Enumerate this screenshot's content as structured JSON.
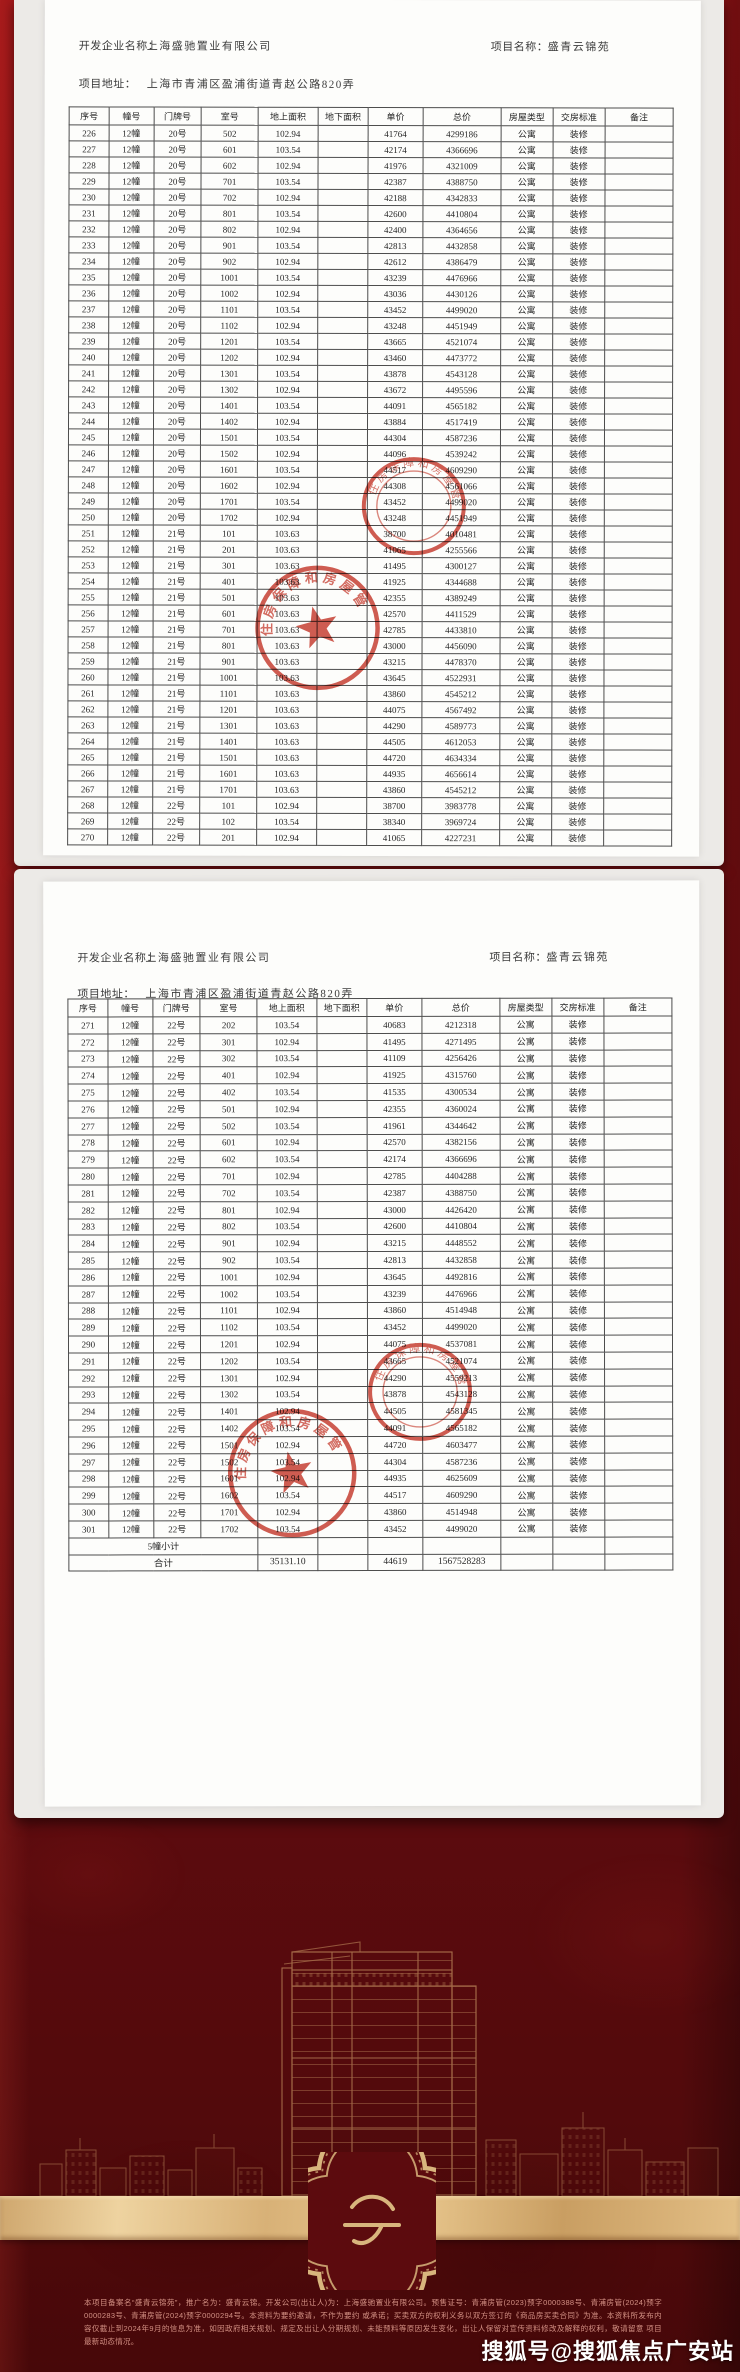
{
  "doc": {
    "company_label": "开发企业名称：",
    "company": "上海盛驰置业有限公司",
    "project_label": "项目名称：",
    "project": "盛青云锦苑",
    "address_label": "项目地址：",
    "address": "上海市青浦区盈浦街道青赵公路820弄",
    "headers": [
      "序号",
      "幢号",
      "门牌号",
      "室号",
      "地上面积",
      "地下面积",
      "单价",
      "总价",
      "房屋类型",
      "交房标准",
      "备注"
    ],
    "pages": [
      {
        "rows": [
          [
            "226",
            "12幢",
            "20号",
            "502",
            "102.94",
            "",
            "41764",
            "4299186",
            "公寓",
            "装修",
            ""
          ],
          [
            "227",
            "12幢",
            "20号",
            "601",
            "103.54",
            "",
            "42174",
            "4366696",
            "公寓",
            "装修",
            ""
          ],
          [
            "228",
            "12幢",
            "20号",
            "602",
            "102.94",
            "",
            "41976",
            "4321009",
            "公寓",
            "装修",
            ""
          ],
          [
            "229",
            "12幢",
            "20号",
            "701",
            "103.54",
            "",
            "42387",
            "4388750",
            "公寓",
            "装修",
            ""
          ],
          [
            "230",
            "12幢",
            "20号",
            "702",
            "102.94",
            "",
            "42188",
            "4342833",
            "公寓",
            "装修",
            ""
          ],
          [
            "231",
            "12幢",
            "20号",
            "801",
            "103.54",
            "",
            "42600",
            "4410804",
            "公寓",
            "装修",
            ""
          ],
          [
            "232",
            "12幢",
            "20号",
            "802",
            "102.94",
            "",
            "42400",
            "4364656",
            "公寓",
            "装修",
            ""
          ],
          [
            "233",
            "12幢",
            "20号",
            "901",
            "103.54",
            "",
            "42813",
            "4432858",
            "公寓",
            "装修",
            ""
          ],
          [
            "234",
            "12幢",
            "20号",
            "902",
            "102.94",
            "",
            "42612",
            "4386479",
            "公寓",
            "装修",
            ""
          ],
          [
            "235",
            "12幢",
            "20号",
            "1001",
            "103.54",
            "",
            "43239",
            "4476966",
            "公寓",
            "装修",
            ""
          ],
          [
            "236",
            "12幢",
            "20号",
            "1002",
            "102.94",
            "",
            "43036",
            "4430126",
            "公寓",
            "装修",
            ""
          ],
          [
            "237",
            "12幢",
            "20号",
            "1101",
            "103.54",
            "",
            "43452",
            "4499020",
            "公寓",
            "装修",
            ""
          ],
          [
            "238",
            "12幢",
            "20号",
            "1102",
            "102.94",
            "",
            "43248",
            "4451949",
            "公寓",
            "装修",
            ""
          ],
          [
            "239",
            "12幢",
            "20号",
            "1201",
            "103.54",
            "",
            "43665",
            "4521074",
            "公寓",
            "装修",
            ""
          ],
          [
            "240",
            "12幢",
            "20号",
            "1202",
            "102.94",
            "",
            "43460",
            "4473772",
            "公寓",
            "装修",
            ""
          ],
          [
            "241",
            "12幢",
            "20号",
            "1301",
            "103.54",
            "",
            "43878",
            "4543128",
            "公寓",
            "装修",
            ""
          ],
          [
            "242",
            "12幢",
            "20号",
            "1302",
            "102.94",
            "",
            "43672",
            "4495596",
            "公寓",
            "装修",
            ""
          ],
          [
            "243",
            "12幢",
            "20号",
            "1401",
            "103.54",
            "",
            "44091",
            "4565182",
            "公寓",
            "装修",
            ""
          ],
          [
            "244",
            "12幢",
            "20号",
            "1402",
            "102.94",
            "",
            "43884",
            "4517419",
            "公寓",
            "装修",
            ""
          ],
          [
            "245",
            "12幢",
            "20号",
            "1501",
            "103.54",
            "",
            "44304",
            "4587236",
            "公寓",
            "装修",
            ""
          ],
          [
            "246",
            "12幢",
            "20号",
            "1502",
            "102.94",
            "",
            "44096",
            "4539242",
            "公寓",
            "装修",
            ""
          ],
          [
            "247",
            "12幢",
            "20号",
            "1601",
            "103.54",
            "",
            "44517",
            "4609290",
            "公寓",
            "装修",
            ""
          ],
          [
            "248",
            "12幢",
            "20号",
            "1602",
            "102.94",
            "",
            "44308",
            "4561066",
            "公寓",
            "装修",
            ""
          ],
          [
            "249",
            "12幢",
            "20号",
            "1701",
            "103.54",
            "",
            "43452",
            "4499020",
            "公寓",
            "装修",
            ""
          ],
          [
            "250",
            "12幢",
            "20号",
            "1702",
            "102.94",
            "",
            "43248",
            "4451949",
            "公寓",
            "装修",
            ""
          ],
          [
            "251",
            "12幢",
            "21号",
            "101",
            "103.63",
            "",
            "38700",
            "4010481",
            "公寓",
            "装修",
            ""
          ],
          [
            "252",
            "12幢",
            "21号",
            "201",
            "103.63",
            "",
            "41065",
            "4255566",
            "公寓",
            "装修",
            ""
          ],
          [
            "253",
            "12幢",
            "21号",
            "301",
            "103.63",
            "",
            "41495",
            "4300127",
            "公寓",
            "装修",
            ""
          ],
          [
            "254",
            "12幢",
            "21号",
            "401",
            "103.63",
            "",
            "41925",
            "4344688",
            "公寓",
            "装修",
            ""
          ],
          [
            "255",
            "12幢",
            "21号",
            "501",
            "103.63",
            "",
            "42355",
            "4389249",
            "公寓",
            "装修",
            ""
          ],
          [
            "256",
            "12幢",
            "21号",
            "601",
            "103.63",
            "",
            "42570",
            "4411529",
            "公寓",
            "装修",
            ""
          ],
          [
            "257",
            "12幢",
            "21号",
            "701",
            "103.63",
            "",
            "42785",
            "4433810",
            "公寓",
            "装修",
            ""
          ],
          [
            "258",
            "12幢",
            "21号",
            "801",
            "103.63",
            "",
            "43000",
            "4456090",
            "公寓",
            "装修",
            ""
          ],
          [
            "259",
            "12幢",
            "21号",
            "901",
            "103.63",
            "",
            "43215",
            "4478370",
            "公寓",
            "装修",
            ""
          ],
          [
            "260",
            "12幢",
            "21号",
            "1001",
            "103.63",
            "",
            "43645",
            "4522931",
            "公寓",
            "装修",
            ""
          ],
          [
            "261",
            "12幢",
            "21号",
            "1101",
            "103.63",
            "",
            "43860",
            "4545212",
            "公寓",
            "装修",
            ""
          ],
          [
            "262",
            "12幢",
            "21号",
            "1201",
            "103.63",
            "",
            "44075",
            "4567492",
            "公寓",
            "装修",
            ""
          ],
          [
            "263",
            "12幢",
            "21号",
            "1301",
            "103.63",
            "",
            "44290",
            "4589773",
            "公寓",
            "装修",
            ""
          ],
          [
            "264",
            "12幢",
            "21号",
            "1401",
            "103.63",
            "",
            "44505",
            "4612053",
            "公寓",
            "装修",
            ""
          ],
          [
            "265",
            "12幢",
            "21号",
            "1501",
            "103.63",
            "",
            "44720",
            "4634334",
            "公寓",
            "装修",
            ""
          ],
          [
            "266",
            "12幢",
            "21号",
            "1601",
            "103.63",
            "",
            "44935",
            "4656614",
            "公寓",
            "装修",
            ""
          ],
          [
            "267",
            "12幢",
            "21号",
            "1701",
            "103.63",
            "",
            "43860",
            "4545212",
            "公寓",
            "装修",
            ""
          ],
          [
            "268",
            "12幢",
            "22号",
            "101",
            "102.94",
            "",
            "38700",
            "3983778",
            "公寓",
            "装修",
            ""
          ],
          [
            "269",
            "12幢",
            "22号",
            "102",
            "103.54",
            "",
            "38340",
            "3969724",
            "公寓",
            "装修",
            ""
          ],
          [
            "270",
            "12幢",
            "22号",
            "201",
            "102.94",
            "",
            "41065",
            "4227231",
            "公寓",
            "装修",
            ""
          ]
        ]
      },
      {
        "rows": [
          [
            "271",
            "12幢",
            "22号",
            "202",
            "103.54",
            "",
            "40683",
            "4212318",
            "公寓",
            "装修",
            ""
          ],
          [
            "272",
            "12幢",
            "22号",
            "301",
            "102.94",
            "",
            "41495",
            "4271495",
            "公寓",
            "装修",
            ""
          ],
          [
            "273",
            "12幢",
            "22号",
            "302",
            "103.54",
            "",
            "41109",
            "4256426",
            "公寓",
            "装修",
            ""
          ],
          [
            "274",
            "12幢",
            "22号",
            "401",
            "102.94",
            "",
            "41925",
            "4315760",
            "公寓",
            "装修",
            ""
          ],
          [
            "275",
            "12幢",
            "22号",
            "402",
            "103.54",
            "",
            "41535",
            "4300534",
            "公寓",
            "装修",
            ""
          ],
          [
            "276",
            "12幢",
            "22号",
            "501",
            "102.94",
            "",
            "42355",
            "4360024",
            "公寓",
            "装修",
            ""
          ],
          [
            "277",
            "12幢",
            "22号",
            "502",
            "103.54",
            "",
            "41961",
            "4344642",
            "公寓",
            "装修",
            ""
          ],
          [
            "278",
            "12幢",
            "22号",
            "601",
            "102.94",
            "",
            "42570",
            "4382156",
            "公寓",
            "装修",
            ""
          ],
          [
            "279",
            "12幢",
            "22号",
            "602",
            "103.54",
            "",
            "42174",
            "4366696",
            "公寓",
            "装修",
            ""
          ],
          [
            "280",
            "12幢",
            "22号",
            "701",
            "102.94",
            "",
            "42785",
            "4404288",
            "公寓",
            "装修",
            ""
          ],
          [
            "281",
            "12幢",
            "22号",
            "702",
            "103.54",
            "",
            "42387",
            "4388750",
            "公寓",
            "装修",
            ""
          ],
          [
            "282",
            "12幢",
            "22号",
            "801",
            "102.94",
            "",
            "43000",
            "4426420",
            "公寓",
            "装修",
            ""
          ],
          [
            "283",
            "12幢",
            "22号",
            "802",
            "103.54",
            "",
            "42600",
            "4410804",
            "公寓",
            "装修",
            ""
          ],
          [
            "284",
            "12幢",
            "22号",
            "901",
            "102.94",
            "",
            "43215",
            "4448552",
            "公寓",
            "装修",
            ""
          ],
          [
            "285",
            "12幢",
            "22号",
            "902",
            "103.54",
            "",
            "42813",
            "4432858",
            "公寓",
            "装修",
            ""
          ],
          [
            "286",
            "12幢",
            "22号",
            "1001",
            "102.94",
            "",
            "43645",
            "4492816",
            "公寓",
            "装修",
            ""
          ],
          [
            "287",
            "12幢",
            "22号",
            "1002",
            "103.54",
            "",
            "43239",
            "4476966",
            "公寓",
            "装修",
            ""
          ],
          [
            "288",
            "12幢",
            "22号",
            "1101",
            "102.94",
            "",
            "43860",
            "4514948",
            "公寓",
            "装修",
            ""
          ],
          [
            "289",
            "12幢",
            "22号",
            "1102",
            "103.54",
            "",
            "43452",
            "4499020",
            "公寓",
            "装修",
            ""
          ],
          [
            "290",
            "12幢",
            "22号",
            "1201",
            "102.94",
            "",
            "44075",
            "4537081",
            "公寓",
            "装修",
            ""
          ],
          [
            "291",
            "12幢",
            "22号",
            "1202",
            "103.54",
            "",
            "43665",
            "4521074",
            "公寓",
            "装修",
            ""
          ],
          [
            "292",
            "12幢",
            "22号",
            "1301",
            "102.94",
            "",
            "44290",
            "4559213",
            "公寓",
            "装修",
            ""
          ],
          [
            "293",
            "12幢",
            "22号",
            "1302",
            "103.54",
            "",
            "43878",
            "4543128",
            "公寓",
            "装修",
            ""
          ],
          [
            "294",
            "12幢",
            "22号",
            "1401",
            "102.94",
            "",
            "44505",
            "4581345",
            "公寓",
            "装修",
            ""
          ],
          [
            "295",
            "12幢",
            "22号",
            "1402",
            "103.54",
            "",
            "44091",
            "4565182",
            "公寓",
            "装修",
            ""
          ],
          [
            "296",
            "12幢",
            "22号",
            "1501",
            "102.94",
            "",
            "44720",
            "4603477",
            "公寓",
            "装修",
            ""
          ],
          [
            "297",
            "12幢",
            "22号",
            "1502",
            "103.54",
            "",
            "44304",
            "4587236",
            "公寓",
            "装修",
            ""
          ],
          [
            "298",
            "12幢",
            "22号",
            "1601",
            "102.94",
            "",
            "44935",
            "4625609",
            "公寓",
            "装修",
            ""
          ],
          [
            "299",
            "12幢",
            "22号",
            "1602",
            "103.54",
            "",
            "44517",
            "4609290",
            "公寓",
            "装修",
            ""
          ],
          [
            "300",
            "12幢",
            "22号",
            "1701",
            "102.94",
            "",
            "43860",
            "4514948",
            "公寓",
            "装修",
            ""
          ],
          [
            "301",
            "12幢",
            "22号",
            "1702",
            "103.54",
            "",
            "43452",
            "4499020",
            "公寓",
            "装修",
            ""
          ]
        ],
        "summary": [
          [
            "5幢小计",
            "",
            "",
            "",
            "",
            "",
            "",
            ""
          ],
          [
            "合计",
            "35131.10",
            "",
            "44619",
            "1567528283",
            "",
            "",
            ""
          ]
        ]
      }
    ]
  },
  "seals": {
    "arc_text": "住房保障和房屋管理局"
  },
  "footer": {
    "disclaimer_line1": "本项目备案名“盛青云锦苑”，推广名为：盛青云锦。开发公司(出让人)为：上海盛驰置业有限公司。预售证号：青浦房管(2023)预字0000388号、青浦房管(2024)预字0000283号、青浦房管(2024)预字0000294号。本资料为要约邀请，不作为要约",
    "disclaimer_line2": "或承诺；买卖双方的权利义务以双方签订的《商品房买卖合同》为准。本资料所发布内容仅截止到2024年9月的信息为准，如因政府相关规划、规定及出让人分期规划、未能预料等原因发生变化，出让人保留对宣传资料修改及解释的权利，敬请留意",
    "disclaimer_line3": "项目最新动态情况。",
    "watermark": "搜狐号@搜狐焦点广安站"
  },
  "colors": {
    "bg_red": "#8c1114",
    "bg_dark_red": "#4f0a0c",
    "ribbon_gold": "#dfb97f",
    "seal_red": "#c6392b",
    "lineart_cream": "#d2a26b"
  }
}
